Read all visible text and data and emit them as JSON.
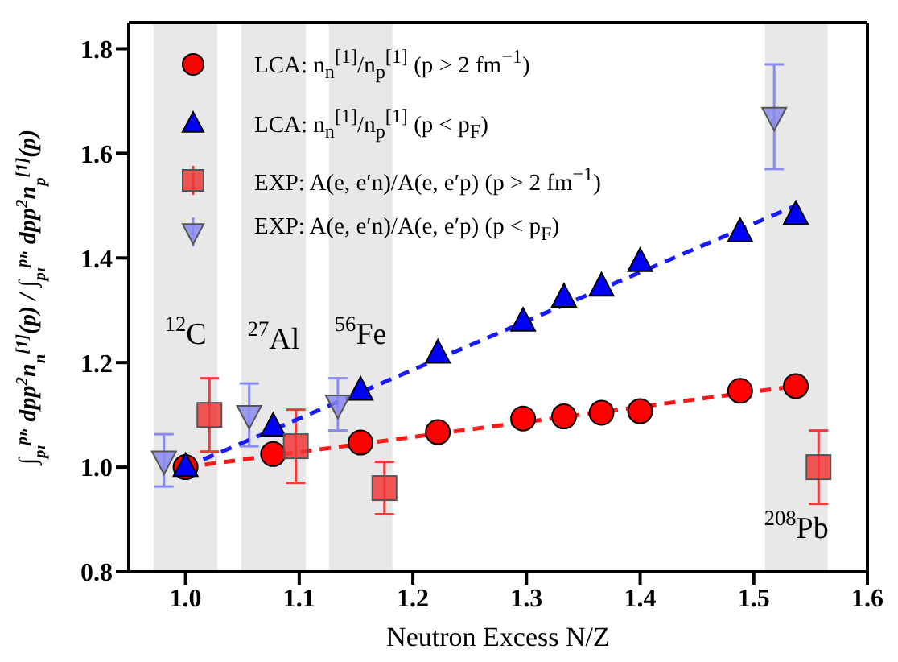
{
  "chart_data": {
    "type": "scatter",
    "xlabel": "Neutron Excess N/Z",
    "ylabel": "∫$_{pₗ}$$^{pₕ}$ dpp$^{2}$n$_{n}$$^{[1]}$(p) / ∫$_{pₗ}$$^{pₕ}$ dpp$^{2}$n$_{p}$$^{[1]}$(p)",
    "xlim": [
      0.95,
      1.6
    ],
    "ylim": [
      0.8,
      1.85
    ],
    "xticks": [
      {
        "value": 1,
        "label": "1.0"
      },
      {
        "value": 1.1,
        "label": "1.1"
      },
      {
        "value": 1.2,
        "label": "1.2"
      },
      {
        "value": 1.3,
        "label": "1.3"
      },
      {
        "value": 1.4,
        "label": "1.4"
      },
      {
        "value": 1.5,
        "label": "1.5"
      },
      {
        "value": 1.6,
        "label": "1.6"
      }
    ],
    "yticks": [
      {
        "value": 0.8,
        "label": "0.8"
      },
      {
        "value": 1,
        "label": "1.0"
      },
      {
        "value": 1.2,
        "label": "1.2"
      },
      {
        "value": 1.4,
        "label": "1.4"
      },
      {
        "value": 1.6,
        "label": "1.6"
      },
      {
        "value": 1.8,
        "label": "1.8"
      }
    ],
    "grid": false,
    "legend": "top left",
    "bands": [
      {
        "axis": "x",
        "from": 0.972,
        "to": 1.028,
        "color": "#e8e8e8",
        "label": "$^{12}$C"
      },
      {
        "axis": "x",
        "from": 1.049,
        "to": 1.106,
        "color": "#e8e8e8",
        "label": "$^{27}$Al"
      },
      {
        "axis": "x",
        "from": 1.126,
        "to": 1.182,
        "color": "#e8e8e8",
        "label": "$^{56}$Fe"
      },
      {
        "axis": "x",
        "from": 1.51,
        "to": 1.565,
        "color": "#e8e8e8",
        "label": "$^{208}$Pb"
      }
    ],
    "series": [
      {
        "type": "line",
        "color": "#ff1a1a",
        "line_style": "dashed",
        "marker": "none",
        "x": [
          1.0,
          1.537
        ],
        "values": [
          1.0,
          1.155
        ]
      },
      {
        "type": "line",
        "color": "#1a1aff",
        "line_style": "dashed",
        "marker": "none",
        "x": [
          1.0,
          1.537
        ],
        "values": [
          1.0,
          1.5
        ]
      },
      {
        "name": "LCA: n$_{n}$$^{[1]}$/n$_{p}$$^{[1]}$ (p > 2 fm$^{−1}$)",
        "color": "#ff0000",
        "marker": "circle",
        "x": [
          1.0,
          1.077,
          1.154,
          1.222,
          1.297,
          1.333,
          1.366,
          1.4,
          1.488,
          1.537
        ],
        "values": [
          1.0,
          1.025,
          1.047,
          1.067,
          1.093,
          1.097,
          1.104,
          1.107,
          1.146,
          1.155
        ]
      },
      {
        "name": "LCA: n$_{n}$$^{[1]}$/n$_{p}$$^{[1]}$ (p < p$_{F}$)",
        "color": "#0000ff",
        "marker": "triangle",
        "x": [
          1.0,
          1.077,
          1.154,
          1.222,
          1.297,
          1.333,
          1.366,
          1.4,
          1.488,
          1.537
        ],
        "values": [
          1.0,
          1.077,
          1.146,
          1.217,
          1.278,
          1.324,
          1.345,
          1.392,
          1.449,
          1.482
        ]
      },
      {
        "name": "EXP: A(e, e′n)/A(e, e′p) (p > 2 fm$^{−1}$)",
        "color": "#f03a3a",
        "marker": "square",
        "x": [
          1.021,
          1.097,
          1.175,
          1.557
        ],
        "values": [
          1.1,
          1.04,
          0.96,
          1.0
        ],
        "errors": [
          0.07,
          0.07,
          0.05,
          0.07
        ]
      },
      {
        "name": "EXP: A(e, e′n)/A(e, e′p) (p < p$_{F}$)",
        "color": "#8a8aee",
        "marker": "triangle-down",
        "x": [
          0.981,
          1.056,
          1.134,
          1.518
        ],
        "values": [
          1.013,
          1.1,
          1.12,
          1.67
        ],
        "errors": [
          0.05,
          0.06,
          0.05,
          0.1
        ]
      }
    ]
  }
}
